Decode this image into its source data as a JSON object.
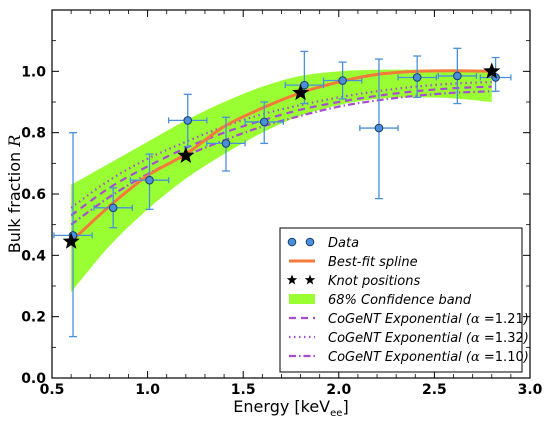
{
  "chart_data": {
    "type": "scatter",
    "xlabel": "Energy [keV",
    "xlabel_sub": "ee",
    "xlabel_close": "]",
    "ylabel": "Bulk fraction",
    "ylabel_symbol": "R",
    "xlim": [
      0.5,
      3.0
    ],
    "ylim": [
      0.0,
      1.2
    ],
    "x_ticks": [
      "0.5",
      "1.0",
      "1.5",
      "2.0",
      "2.5",
      "3.0"
    ],
    "y_ticks": [
      "0.0",
      "0.2",
      "0.4",
      "0.6",
      "0.8",
      "1.0"
    ],
    "grid": false,
    "legend_position": "lower right",
    "data": {
      "name": "Data",
      "color": "#4a90d9",
      "points": [
        {
          "x": 0.61,
          "y": 0.465,
          "xerr": 0.1,
          "ylow": 0.135,
          "yhigh": 0.8
        },
        {
          "x": 0.82,
          "y": 0.555,
          "xerr": 0.1,
          "ylow": 0.49,
          "yhigh": 0.62
        },
        {
          "x": 1.01,
          "y": 0.645,
          "xerr": 0.1,
          "ylow": 0.55,
          "yhigh": 0.73
        },
        {
          "x": 1.21,
          "y": 0.84,
          "xerr": 0.1,
          "ylow": 0.755,
          "yhigh": 0.925
        },
        {
          "x": 1.41,
          "y": 0.765,
          "xerr": 0.1,
          "ylow": 0.675,
          "yhigh": 0.85
        },
        {
          "x": 1.61,
          "y": 0.835,
          "xerr": 0.1,
          "ylow": 0.765,
          "yhigh": 0.9
        },
        {
          "x": 1.82,
          "y": 0.955,
          "xerr": 0.1,
          "ylow": 0.895,
          "yhigh": 1.065
        },
        {
          "x": 2.02,
          "y": 0.97,
          "xerr": 0.1,
          "ylow": 0.91,
          "yhigh": 1.03
        },
        {
          "x": 2.21,
          "y": 0.815,
          "xerr": 0.1,
          "ylow": 0.585,
          "yhigh": 1.04
        },
        {
          "x": 2.41,
          "y": 0.98,
          "xerr": 0.1,
          "ylow": 0.915,
          "yhigh": 1.05
        },
        {
          "x": 2.62,
          "y": 0.985,
          "xerr": 0.1,
          "ylow": 0.895,
          "yhigh": 1.075
        },
        {
          "x": 2.82,
          "y": 0.98,
          "xerr": 0.08,
          "ylow": 0.935,
          "yhigh": 1.045
        }
      ]
    },
    "spline": {
      "name": "Best-fit spline",
      "color": "#f5793a",
      "x": [
        0.6,
        0.8,
        1.0,
        1.2,
        1.4,
        1.6,
        1.8,
        2.0,
        2.2,
        2.4,
        2.6,
        2.8
      ],
      "y": [
        0.445,
        0.56,
        0.66,
        0.73,
        0.82,
        0.88,
        0.93,
        0.965,
        0.99,
        1.0,
        1.002,
        1.0
      ]
    },
    "knots": {
      "name": "Knot positions",
      "x": [
        0.6,
        1.2,
        1.8,
        2.8
      ],
      "y": [
        0.445,
        0.725,
        0.93,
        1.0
      ]
    },
    "band": {
      "name": "68% Confidence band",
      "color": "#99ff33",
      "x": [
        0.6,
        0.8,
        1.0,
        1.2,
        1.4,
        1.6,
        1.8,
        2.0,
        2.2,
        2.4,
        2.6,
        2.8
      ],
      "lower": [
        0.28,
        0.43,
        0.55,
        0.65,
        0.73,
        0.8,
        0.855,
        0.89,
        0.91,
        0.915,
        0.912,
        0.9
      ],
      "upper": [
        0.63,
        0.7,
        0.77,
        0.84,
        0.9,
        0.95,
        0.985,
        1.0,
        1.005,
        1.005,
        1.005,
        1.0
      ]
    },
    "cogent": [
      {
        "name": "CoGeNT Exponential",
        "alpha": "1.21",
        "style": "dashed",
        "color": "#a64dcf",
        "x": [
          0.6,
          0.8,
          1.0,
          1.2,
          1.4,
          1.6,
          1.8,
          2.0,
          2.2,
          2.4,
          2.6,
          2.8
        ],
        "y": [
          0.53,
          0.62,
          0.69,
          0.75,
          0.8,
          0.84,
          0.875,
          0.9,
          0.92,
          0.935,
          0.945,
          0.95
        ]
      },
      {
        "name": "CoGeNT Exponential",
        "alpha": "1.32",
        "style": "dotted",
        "color": "#a64dcf",
        "x": [
          0.6,
          0.8,
          1.0,
          1.2,
          1.4,
          1.6,
          1.8,
          2.0,
          2.2,
          2.4,
          2.6,
          2.8
        ],
        "y": [
          0.555,
          0.645,
          0.715,
          0.77,
          0.82,
          0.86,
          0.89,
          0.915,
          0.935,
          0.95,
          0.96,
          0.965
        ]
      },
      {
        "name": "CoGeNT Exponential",
        "alpha": "1.10",
        "style": "dashdot",
        "color": "#a64dcf",
        "x": [
          0.6,
          0.8,
          1.0,
          1.2,
          1.4,
          1.6,
          1.8,
          2.0,
          2.2,
          2.4,
          2.6,
          2.8
        ],
        "y": [
          0.5,
          0.59,
          0.665,
          0.725,
          0.775,
          0.82,
          0.855,
          0.885,
          0.905,
          0.92,
          0.93,
          0.935
        ]
      }
    ],
    "legend": {
      "data": "Data",
      "spline": "Best-fit spline",
      "knots": "Knot positions",
      "band": "68% Confidence band",
      "cogent_prefix": "CoGeNT Exponential (",
      "alpha_symbol": "α",
      "alpha_eq": " =",
      "cogent_suffix": ")"
    }
  }
}
